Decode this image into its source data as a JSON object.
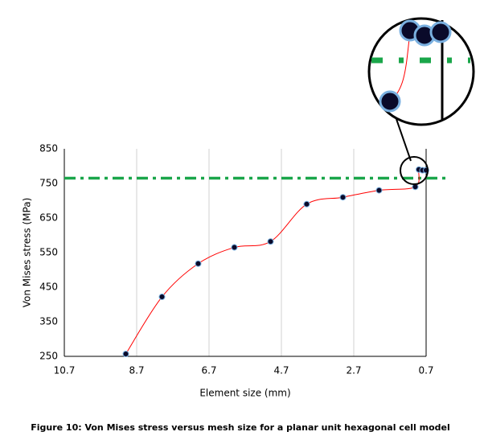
{
  "chart_data": {
    "type": "line",
    "x_label": "Element size (mm)",
    "y_label": "Von Mises stress (MPa)",
    "series": [
      {
        "name": "Von Mises stress",
        "color": "#ff0000",
        "marker_color": "#0a0a2a",
        "x": [
          9.0,
          8.0,
          7.0,
          6.0,
          5.0,
          4.0,
          3.0,
          2.0,
          1.0,
          0.9,
          0.8,
          0.7
        ],
        "values": [
          257,
          422,
          518,
          565,
          582,
          690,
          710,
          730,
          740,
          790,
          788,
          788
        ]
      }
    ],
    "reference_line": {
      "value": 765,
      "color": "#1aa64a"
    },
    "xlim": [
      10.7,
      0.7
    ],
    "xticks": [
      10.7,
      8.7,
      6.7,
      4.7,
      2.7,
      0.7
    ],
    "ylim": [
      250,
      850
    ],
    "yticks": [
      250,
      350,
      450,
      550,
      650,
      750,
      850
    ],
    "grid": true
  },
  "caption": "Figure 10: Von Mises stress versus mesh size for a planar unit hexagonal cell model"
}
